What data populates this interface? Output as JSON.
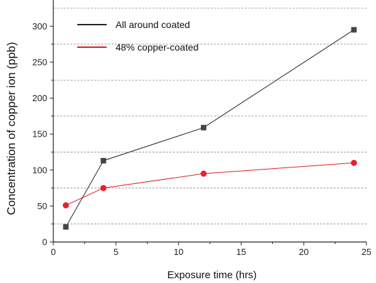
{
  "chart_data": {
    "type": "line",
    "title": "",
    "xlabel": "Exposure time (hrs)",
    "ylabel": "Concentration of copper ion (ppb)",
    "xlim": [
      0,
      25
    ],
    "ylim": [
      0,
      325
    ],
    "xticks": [
      0,
      5,
      10,
      15,
      20,
      25
    ],
    "yticks": [
      0,
      50,
      100,
      150,
      200,
      250,
      300
    ],
    "grid": "horizontal dashed at 25, 75, 125, 175, 225, 275, 325",
    "grid_values": [
      25,
      75,
      125,
      175,
      225,
      275,
      325
    ],
    "legend_position": "top-left",
    "series": [
      {
        "name": "All around coated",
        "color": "#444444",
        "line_color": "#222222",
        "marker": "square",
        "x": [
          1,
          4,
          12,
          24
        ],
        "y": [
          21,
          113,
          159,
          295
        ]
      },
      {
        "name": "48% copper-coated",
        "color": "#e8212b",
        "line_color": "#d81e26",
        "marker": "circle",
        "x": [
          1,
          4,
          12,
          24
        ],
        "y": [
          51,
          75,
          95,
          110
        ]
      }
    ]
  }
}
